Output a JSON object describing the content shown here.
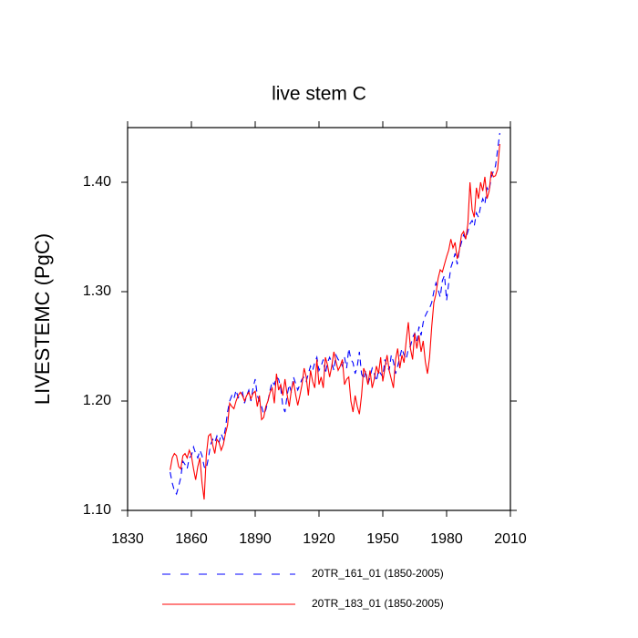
{
  "chart_data": {
    "type": "line",
    "title": "live stem C",
    "y_label": "LIVESTEMC  (PgC)",
    "x": [
      1850,
      1851,
      1852,
      1853,
      1854,
      1855,
      1856,
      1857,
      1858,
      1859,
      1860,
      1861,
      1862,
      1863,
      1864,
      1865,
      1866,
      1867,
      1868,
      1869,
      1870,
      1871,
      1872,
      1873,
      1874,
      1875,
      1876,
      1877,
      1878,
      1879,
      1880,
      1881,
      1882,
      1883,
      1884,
      1885,
      1886,
      1887,
      1888,
      1889,
      1890,
      1891,
      1892,
      1893,
      1894,
      1895,
      1896,
      1897,
      1898,
      1899,
      1900,
      1901,
      1902,
      1903,
      1904,
      1905,
      1906,
      1907,
      1908,
      1909,
      1910,
      1911,
      1912,
      1913,
      1914,
      1915,
      1916,
      1917,
      1918,
      1919,
      1920,
      1921,
      1922,
      1923,
      1924,
      1925,
      1926,
      1927,
      1928,
      1929,
      1930,
      1931,
      1932,
      1933,
      1934,
      1935,
      1936,
      1937,
      1938,
      1939,
      1940,
      1941,
      1942,
      1943,
      1944,
      1945,
      1946,
      1947,
      1948,
      1949,
      1950,
      1951,
      1952,
      1953,
      1954,
      1955,
      1956,
      1957,
      1958,
      1959,
      1960,
      1961,
      1962,
      1963,
      1964,
      1965,
      1966,
      1967,
      1968,
      1969,
      1970,
      1971,
      1972,
      1973,
      1974,
      1975,
      1976,
      1977,
      1978,
      1979,
      1980,
      1981,
      1982,
      1983,
      1984,
      1985,
      1986,
      1987,
      1988,
      1989,
      1990,
      1991,
      1992,
      1993,
      1994,
      1995,
      1996,
      1997,
      1998,
      1999,
      2000,
      2001,
      2002,
      2003,
      2004,
      2005
    ],
    "series": [
      {
        "name": "20TR_161_01 (1850-2005)",
        "color": "#0000ff",
        "dash": true,
        "values": [
          1.135,
          1.125,
          1.118,
          1.115,
          1.122,
          1.13,
          1.145,
          1.142,
          1.138,
          1.148,
          1.15,
          1.158,
          1.152,
          1.148,
          1.155,
          1.15,
          1.14,
          1.138,
          1.148,
          1.16,
          1.165,
          1.162,
          1.168,
          1.162,
          1.17,
          1.165,
          1.175,
          1.19,
          1.2,
          1.205,
          1.202,
          1.21,
          1.203,
          1.205,
          1.208,
          1.198,
          1.205,
          1.21,
          1.2,
          1.212,
          1.22,
          1.205,
          1.2,
          1.195,
          1.188,
          1.192,
          1.2,
          1.21,
          1.218,
          1.215,
          1.222,
          1.22,
          1.212,
          1.195,
          1.19,
          1.205,
          1.215,
          1.208,
          1.222,
          1.216,
          1.21,
          1.215,
          1.22,
          1.222,
          1.218,
          1.225,
          1.232,
          1.228,
          1.235,
          1.24,
          1.228,
          1.232,
          1.238,
          1.225,
          1.235,
          1.24,
          1.235,
          1.228,
          1.242,
          1.238,
          1.236,
          1.232,
          1.24,
          1.23,
          1.248,
          1.238,
          1.235,
          1.225,
          1.232,
          1.245,
          1.225,
          1.22,
          1.228,
          1.215,
          1.222,
          1.23,
          1.225,
          1.218,
          1.228,
          1.225,
          1.222,
          1.238,
          1.232,
          1.228,
          1.242,
          1.236,
          1.225,
          1.232,
          1.24,
          1.248,
          1.242,
          1.238,
          1.248,
          1.25,
          1.258,
          1.262,
          1.255,
          1.268,
          1.26,
          1.272,
          1.278,
          1.282,
          1.285,
          1.29,
          1.3,
          1.308,
          1.302,
          1.295,
          1.31,
          1.315,
          1.292,
          1.308,
          1.322,
          1.328,
          1.335,
          1.325,
          1.338,
          1.345,
          1.352,
          1.348,
          1.355,
          1.362,
          1.365,
          1.36,
          1.372,
          1.368,
          1.378,
          1.385,
          1.38,
          1.395,
          1.392,
          1.405,
          1.41,
          1.415,
          1.43,
          1.445
        ]
      },
      {
        "name": "20TR_183_01 (1850-2005)",
        "color": "#ff0000",
        "dash": false,
        "values": [
          1.137,
          1.148,
          1.152,
          1.15,
          1.14,
          1.138,
          1.15,
          1.152,
          1.148,
          1.155,
          1.15,
          1.138,
          1.128,
          1.14,
          1.148,
          1.125,
          1.11,
          1.15,
          1.168,
          1.17,
          1.16,
          1.152,
          1.165,
          1.162,
          1.155,
          1.16,
          1.17,
          1.178,
          1.198,
          1.195,
          1.193,
          1.2,
          1.205,
          1.208,
          1.205,
          1.2,
          1.205,
          1.208,
          1.202,
          1.207,
          1.209,
          1.195,
          1.205,
          1.183,
          1.185,
          1.195,
          1.2,
          1.208,
          1.212,
          1.198,
          1.225,
          1.21,
          1.215,
          1.205,
          1.22,
          1.206,
          1.195,
          1.21,
          1.218,
          1.206,
          1.196,
          1.205,
          1.215,
          1.23,
          1.222,
          1.205,
          1.228,
          1.218,
          1.212,
          1.238,
          1.215,
          1.222,
          1.212,
          1.24,
          1.233,
          1.222,
          1.232,
          1.245,
          1.236,
          1.228,
          1.232,
          1.238,
          1.215,
          1.22,
          1.222,
          1.2,
          1.19,
          1.205,
          1.195,
          1.188,
          1.205,
          1.23,
          1.225,
          1.215,
          1.228,
          1.212,
          1.22,
          1.232,
          1.225,
          1.24,
          1.218,
          1.23,
          1.242,
          1.228,
          1.22,
          1.212,
          1.238,
          1.248,
          1.23,
          1.242,
          1.235,
          1.255,
          1.272,
          1.248,
          1.238,
          1.262,
          1.248,
          1.26,
          1.245,
          1.255,
          1.236,
          1.225,
          1.24,
          1.268,
          1.29,
          1.298,
          1.312,
          1.32,
          1.318,
          1.325,
          1.332,
          1.338,
          1.348,
          1.34,
          1.345,
          1.33,
          1.338,
          1.352,
          1.355,
          1.348,
          1.362,
          1.4,
          1.375,
          1.368,
          1.395,
          1.385,
          1.4,
          1.392,
          1.405,
          1.385,
          1.392,
          1.41,
          1.405,
          1.406,
          1.412,
          1.435
        ]
      }
    ],
    "xlim": [
      1830,
      2010
    ],
    "xticks": [
      1830,
      1860,
      1890,
      1920,
      1950,
      1980,
      2010
    ],
    "ylim": [
      1.1,
      1.45
    ],
    "yticks": [
      {
        "value": 1.1,
        "label": "1.10"
      },
      {
        "value": 1.2,
        "label": "1.20"
      },
      {
        "value": 1.3,
        "label": "1.30"
      },
      {
        "value": 1.4,
        "label": "1.40"
      }
    ]
  }
}
